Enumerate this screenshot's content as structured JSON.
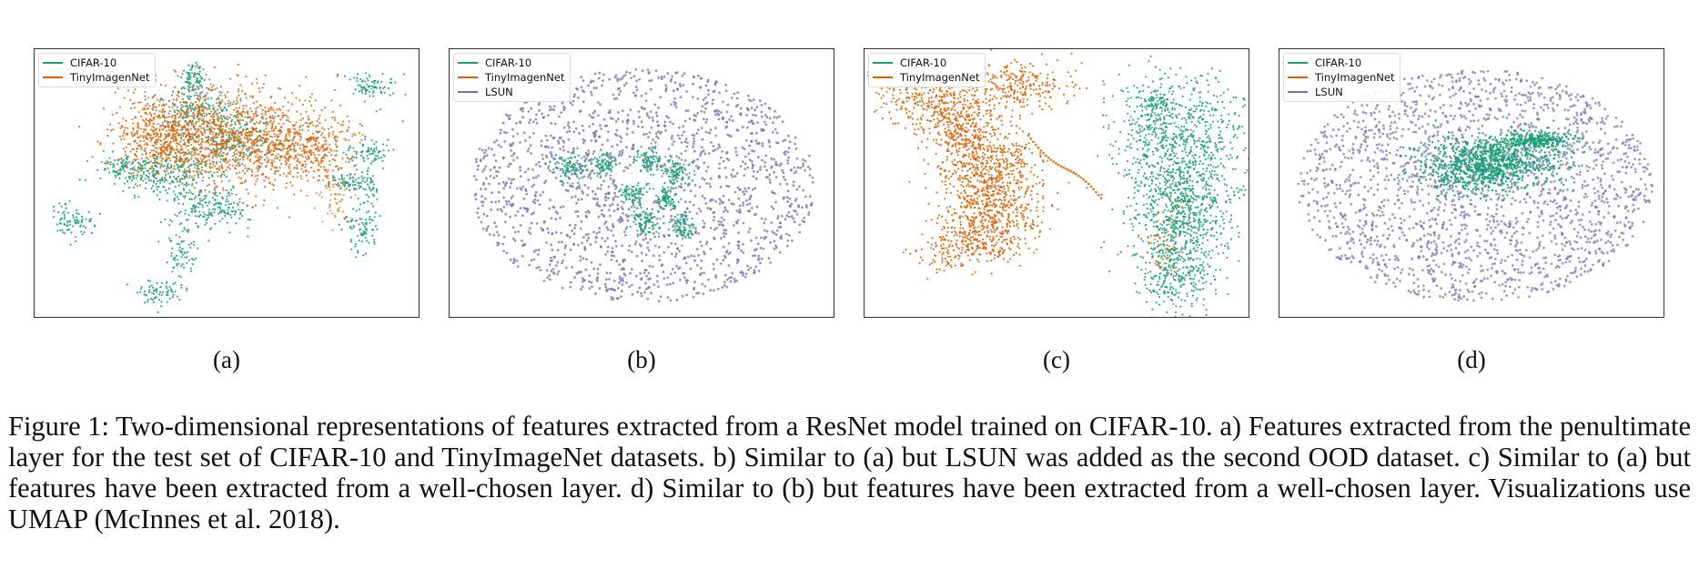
{
  "figure": {
    "panels": [
      {
        "label": "(a)",
        "legend": [
          "CIFAR-10",
          "TinyImagenNet"
        ]
      },
      {
        "label": "(b)",
        "legend": [
          "CIFAR-10",
          "TinyImagenNet",
          "LSUN"
        ]
      },
      {
        "label": "(c)",
        "legend": [
          "CIFAR-10",
          "TinyImagenNet"
        ]
      },
      {
        "label": "(d)",
        "legend": [
          "CIFAR-10",
          "TinyImagenNet",
          "LSUN"
        ]
      }
    ],
    "caption": "Figure 1: Two-dimensional representations of features extracted from a ResNet model trained on CIFAR-10. a) Features extracted from the penultimate layer for the test set of CIFAR-10 and TinyImageNet datasets. b) Similar to (a) but LSUN was added as the second OOD dataset. c) Similar to (a) but features have been extracted from a well-chosen layer. d) Similar to (b) but features have been extracted from a well-chosen layer. Visualizations use UMAP (McInnes et al. 2018)."
  },
  "colors": {
    "cifar": "#1b9e77",
    "tiny": "#d95f02",
    "lsun": "#7570b3"
  },
  "chart_data": [
    {
      "type": "scatter",
      "panel": "(a)",
      "title": "",
      "xlabel": "",
      "ylabel": "",
      "grid": false,
      "legend_position": "top-left",
      "series": [
        {
          "name": "CIFAR-10",
          "values": []
        },
        {
          "name": "TinyImagenNet",
          "values": []
        }
      ]
    },
    {
      "type": "scatter",
      "panel": "(b)",
      "title": "",
      "xlabel": "",
      "ylabel": "",
      "grid": false,
      "legend_position": "top-left",
      "series": [
        {
          "name": "CIFAR-10",
          "values": []
        },
        {
          "name": "TinyImagenNet",
          "values": []
        },
        {
          "name": "LSUN",
          "values": []
        }
      ]
    },
    {
      "type": "scatter",
      "panel": "(c)",
      "title": "",
      "xlabel": "",
      "ylabel": "",
      "grid": false,
      "legend_position": "top-left",
      "series": [
        {
          "name": "CIFAR-10",
          "values": []
        },
        {
          "name": "TinyImagenNet",
          "values": []
        }
      ]
    },
    {
      "type": "scatter",
      "panel": "(d)",
      "title": "",
      "xlabel": "",
      "ylabel": "",
      "grid": false,
      "legend_position": "top-left",
      "series": [
        {
          "name": "CIFAR-10",
          "values": []
        },
        {
          "name": "TinyImagenNet",
          "values": []
        },
        {
          "name": "LSUN",
          "values": []
        }
      ]
    }
  ]
}
